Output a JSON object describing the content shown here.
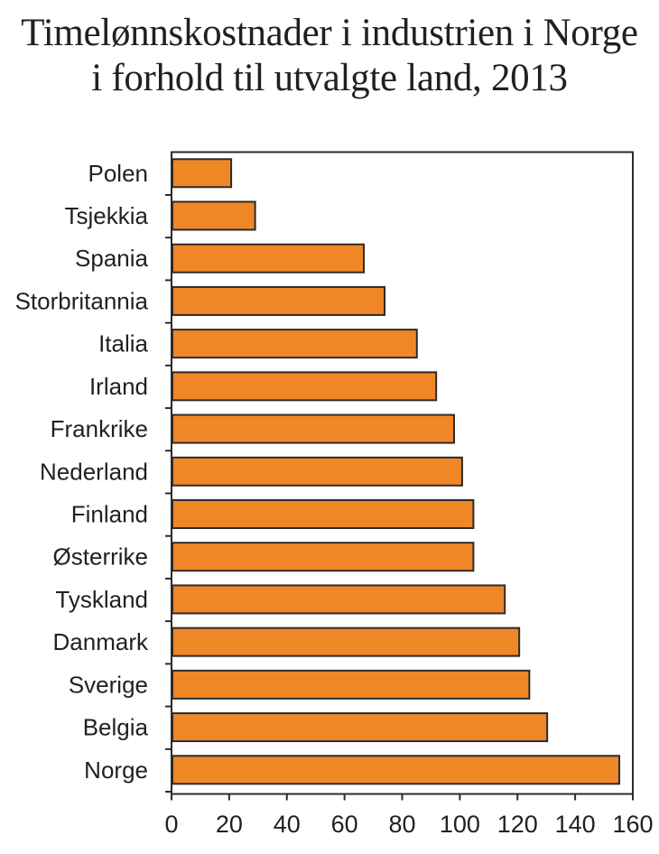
{
  "title": {
    "line1": "Timelønnskostnader i industrien i Norge",
    "line2": "i forhold til utvalgte land, 2013"
  },
  "colors": {
    "bar_fill": "#EF8727",
    "bar_stroke": "#2b2b2b",
    "axis": "#2b2b2b",
    "text": "#231f20"
  },
  "chart_data": {
    "type": "bar",
    "orientation": "horizontal",
    "title": "Timelønnskostnader i industrien i Norge i forhold til utvalgte land, 2013",
    "categories": [
      "Polen",
      "Tsjekkia",
      "Spania",
      "Storbritannia",
      "Italia",
      "Irland",
      "Frankrike",
      "Nederland",
      "Finland",
      "Østerrike",
      "Tyskland",
      "Danmark",
      "Sverige",
      "Belgia",
      "Norge"
    ],
    "values": [
      20.7,
      29.0,
      66.7,
      73.9,
      85.1,
      91.8,
      98.0,
      100.8,
      104.7,
      104.7,
      115.6,
      120.6,
      124.1,
      130.3,
      155.3
    ],
    "xlabel": "",
    "ylabel": "",
    "xlim": [
      0,
      160
    ],
    "xticks": [
      "0",
      "20",
      "40",
      "60",
      "80",
      "100",
      "120",
      "140",
      "160"
    ],
    "grid": false,
    "legend": null
  }
}
